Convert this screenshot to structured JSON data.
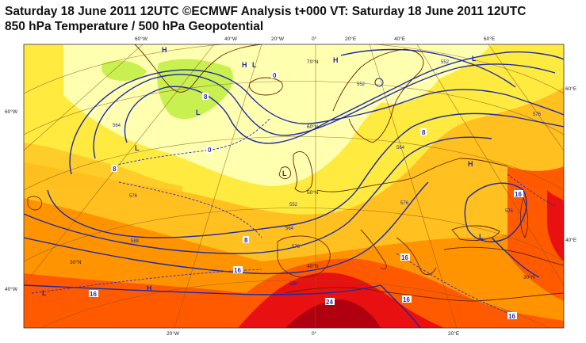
{
  "title_line1": "Saturday 18 June 2011 12UTC ©ECMWF Analysis t+000 VT: Saturday 18 June 2011 12UTC",
  "title_line2": "850 hPa Temperature / 500 hPa Geopotential",
  "graticule": {
    "top_lon": [
      "60°W",
      "40°W",
      "20°W",
      "0°",
      "20°E",
      "40°E",
      "60°E"
    ],
    "bottom_lon": [
      "20°W",
      "0°",
      "20°E"
    ],
    "left_lat": [
      "60°W",
      "40°W"
    ],
    "right_lat": [
      "60°E",
      "40°E"
    ],
    "inner_lat": [
      "70°N",
      "60°N",
      "50°N",
      "40°N",
      "30°N",
      "30°N"
    ]
  },
  "pressure_centres": {
    "highs": [
      "H",
      "H",
      "H",
      "H",
      "H"
    ],
    "lows": [
      "L",
      "L",
      "L",
      "L",
      "L",
      "L",
      "L"
    ]
  },
  "geopotential_labels": [
    "552",
    "552",
    "564",
    "576",
    "588",
    "588",
    "576",
    "564",
    "552",
    "564",
    "576",
    "576",
    "576"
  ],
  "temperature_labels": [
    "0",
    "0",
    "8",
    "8",
    "8",
    "8",
    "16",
    "16",
    "16",
    "16",
    "16",
    "16",
    "24"
  ],
  "colors": {
    "ocean_sea_level_background": "#ffff9a",
    "cold_green": "#c8f050",
    "pale_yellow": "#ffffb0",
    "yellow": "#ffea40",
    "light_orange": "#ffc020",
    "orange": "#ff9400",
    "dark_orange": "#ff5a00",
    "red": "#e81010",
    "dark_red": "#b00010",
    "contour": "#1c2aa8",
    "coast": "#6a2400"
  }
}
